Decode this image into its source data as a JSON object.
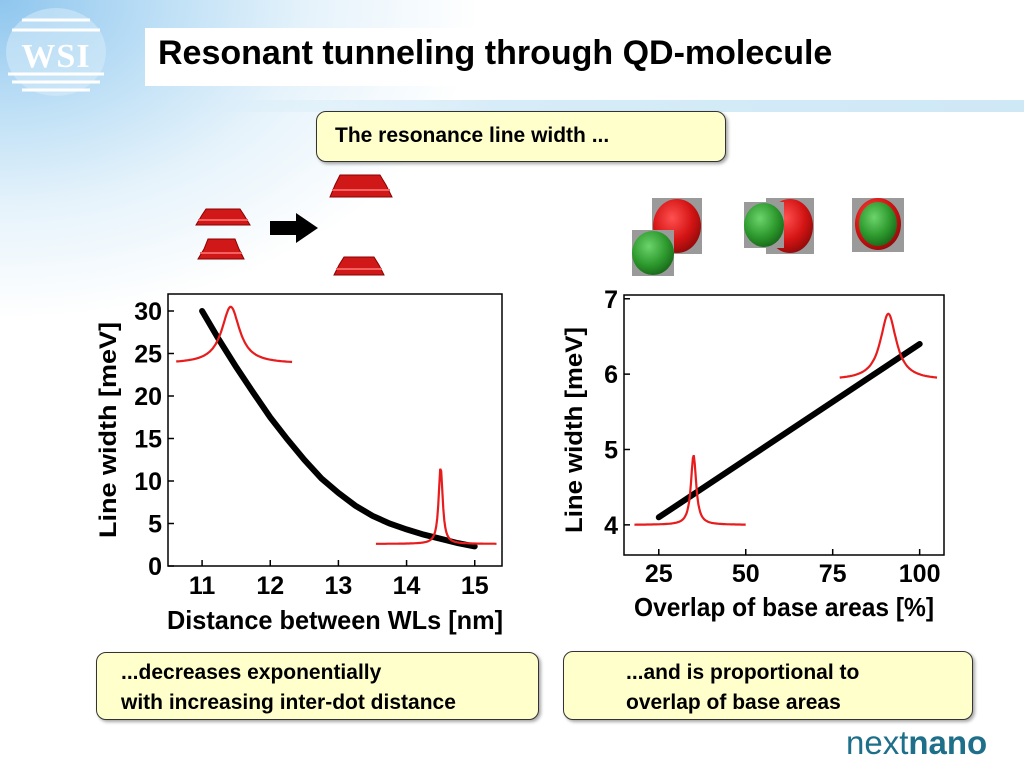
{
  "slide": {
    "title": "Resonant tunneling through QD-molecule",
    "logo_left": "WSI",
    "logo_right_prefix": "next",
    "logo_right_suffix": "nano",
    "callout_top": "The resonance line width ...",
    "callout_left_lines": [
      "...decreases exponentially",
      "with increasing inter-dot distance"
    ],
    "callout_right_lines": [
      "...and is proportional to",
      "overlap of base areas"
    ]
  },
  "colors": {
    "accent": "#e81c1c",
    "callout_bg": "#ffffcc",
    "dot_red": "#d41414",
    "dot_green": "#2e9a2e",
    "logo_blue": "#1d6f8a"
  },
  "icons": [
    "arrow-right-icon",
    "quantum-dot-icon",
    "wsi-logo",
    "nextnano-logo"
  ],
  "chart_data": [
    {
      "type": "line",
      "xlabel": "Distance between WLs [nm]",
      "ylabel": "Line width [meV]",
      "xlim": [
        10.5,
        15.4
      ],
      "ylim": [
        0,
        32
      ],
      "xticks": [
        11,
        12,
        13,
        14,
        15
      ],
      "yticks": [
        0,
        5,
        10,
        15,
        20,
        25,
        30
      ],
      "grid": false,
      "series": [
        {
          "x": [
            11.0,
            11.25,
            11.5,
            11.75,
            12.0,
            12.25,
            12.5,
            12.75,
            13.0,
            13.25,
            13.5,
            13.75,
            14.0,
            14.25,
            14.5,
            14.75,
            15.0
          ],
          "y": [
            30.0,
            26.6,
            23.4,
            20.4,
            17.5,
            14.9,
            12.5,
            10.3,
            8.6,
            7.1,
            5.9,
            5.0,
            4.3,
            3.7,
            3.2,
            2.7,
            2.3
          ]
        }
      ],
      "inset_peaks": [
        {
          "center": 11.42,
          "height": 30.5,
          "baseline": 23.8,
          "halfwidth": 0.16,
          "x_from": 10.62,
          "x_to": 12.32
        },
        {
          "center": 14.5,
          "height": 11.7,
          "baseline": 2.6,
          "halfwidth": 0.035,
          "x_from": 13.55,
          "x_to": 15.32
        }
      ]
    },
    {
      "type": "line",
      "xlabel": "Overlap of base areas [%]",
      "ylabel": "Line width [meV]",
      "xlim": [
        15,
        107
      ],
      "ylim": [
        3.6,
        7.05
      ],
      "xticks": [
        25,
        50,
        75,
        100
      ],
      "yticks": [
        4,
        5,
        6,
        7
      ],
      "grid": false,
      "series": [
        {
          "x": [
            25,
            100
          ],
          "y": [
            4.1,
            6.4
          ]
        }
      ],
      "inset_peaks": [
        {
          "center": 35,
          "height": 4.93,
          "baseline": 4.0,
          "halfwidth": 0.9,
          "x_from": 18,
          "x_to": 50
        },
        {
          "center": 91,
          "height": 6.8,
          "baseline": 5.92,
          "halfwidth": 2.8,
          "x_from": 77,
          "x_to": 105
        }
      ]
    }
  ]
}
